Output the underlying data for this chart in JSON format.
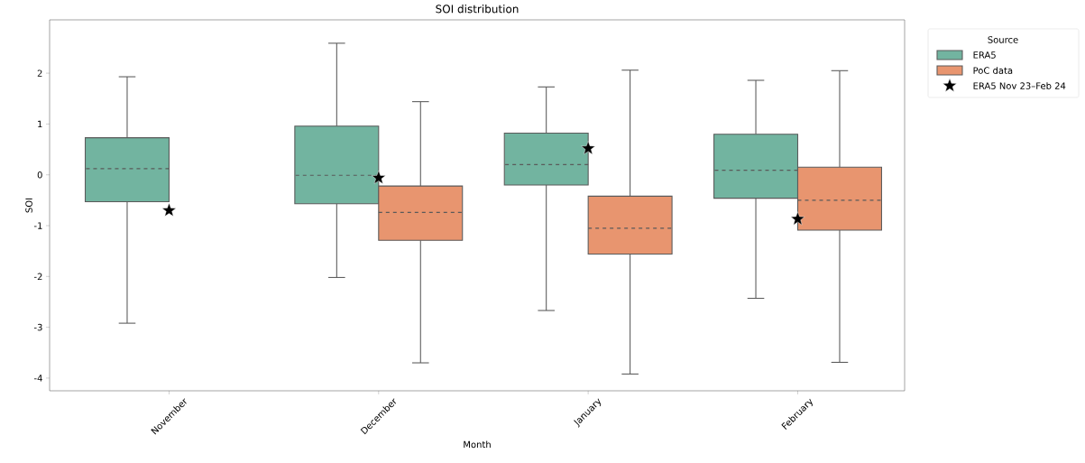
{
  "chart_data": {
    "type": "box",
    "title": "SOI distribution",
    "xlabel": "Month",
    "ylabel": "SOI",
    "legend_title": "Source",
    "legend": "top right",
    "categories": [
      "November",
      "December",
      "January",
      "February"
    ],
    "ylim": [
      -4.25,
      3.05
    ],
    "yticks": [
      -4,
      -3,
      -2,
      -1,
      0,
      1,
      2
    ],
    "series": [
      {
        "name": "ERA5",
        "color": "#72b4a0",
        "boxes": [
          {
            "low": -2.92,
            "q1": -0.53,
            "median": 0.12,
            "q3": 0.73,
            "high": 1.93
          },
          {
            "low": -2.02,
            "q1": -0.57,
            "median": -0.01,
            "q3": 0.96,
            "high": 2.59
          },
          {
            "low": -2.67,
            "q1": -0.2,
            "median": 0.2,
            "q3": 0.82,
            "high": 1.73
          },
          {
            "low": -2.43,
            "q1": -0.46,
            "median": 0.09,
            "q3": 0.8,
            "high": 1.86
          }
        ]
      },
      {
        "name": "PoC data",
        "color": "#e8956f",
        "boxes": [
          null,
          {
            "low": -3.7,
            "q1": -1.29,
            "median": -0.74,
            "q3": -0.22,
            "high": 1.44
          },
          {
            "low": -3.92,
            "q1": -1.56,
            "median": -1.05,
            "q3": -0.42,
            "high": 2.06
          },
          {
            "low": -3.69,
            "q1": -1.09,
            "median": -0.5,
            "q3": 0.15,
            "high": 2.05
          }
        ]
      },
      {
        "name": "ERA5 Nov 23–Feb 24",
        "type": "scatter",
        "color": "#000000",
        "marker": "star",
        "x": [
          "November",
          "December",
          "January",
          "February"
        ],
        "values": [
          -0.7,
          -0.06,
          0.52,
          -0.87
        ]
      }
    ]
  }
}
